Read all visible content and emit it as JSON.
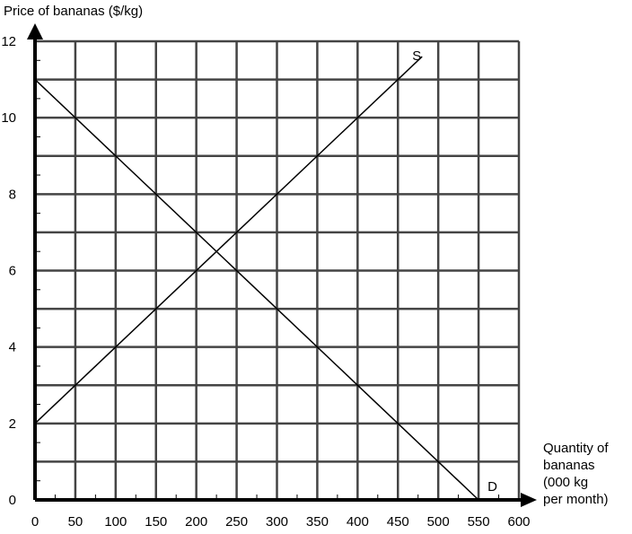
{
  "chart_data": {
    "type": "line",
    "ylabel": "Price of bananas ($/kg)",
    "xlabel_lines": [
      "Quantity of",
      "bananas",
      "(000 kg",
      "per month)"
    ],
    "xlim": [
      0,
      600
    ],
    "ylim": [
      0,
      12
    ],
    "grid": true,
    "x_ticks": [
      0,
      50,
      100,
      150,
      200,
      250,
      300,
      350,
      400,
      450,
      500,
      550,
      600
    ],
    "y_ticks": [
      0,
      2,
      4,
      6,
      8,
      10,
      12
    ],
    "series": [
      {
        "name": "S",
        "x": [
          0,
          480
        ],
        "y": [
          2,
          11.6
        ]
      },
      {
        "name": "D",
        "x": [
          0,
          550
        ],
        "y": [
          11,
          0
        ]
      }
    ]
  }
}
